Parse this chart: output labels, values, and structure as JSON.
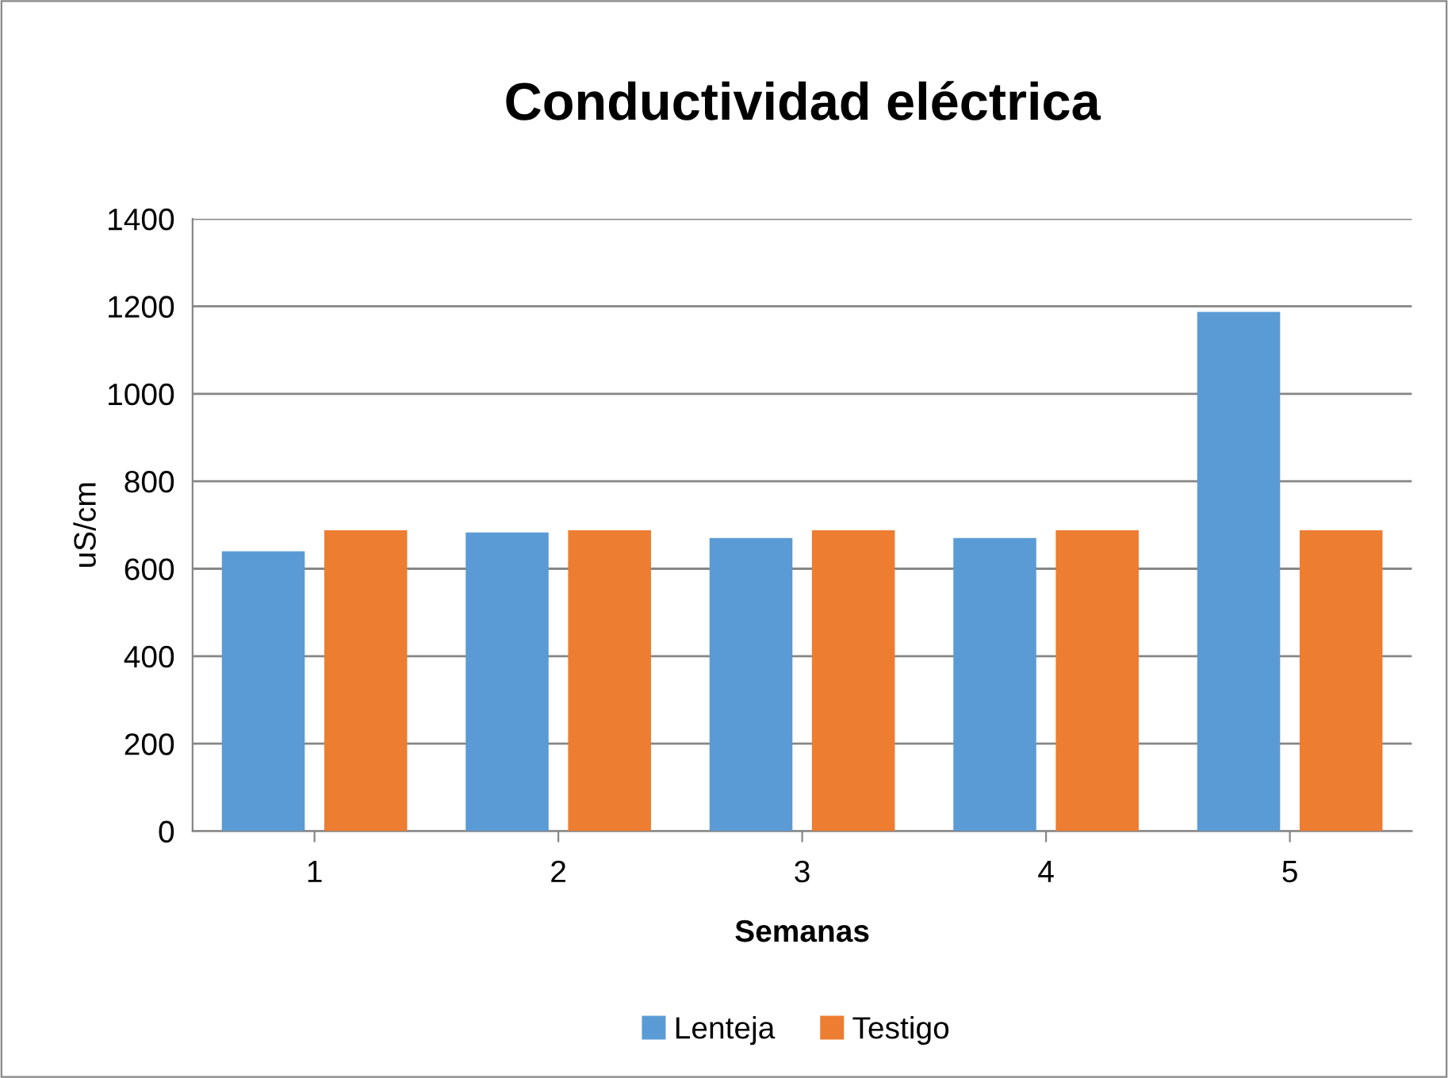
{
  "chart_data": {
    "type": "bar",
    "title": "Conductividad eléctrica",
    "xlabel": "Semanas",
    "ylabel": "uS/cm",
    "categories": [
      "1",
      "2",
      "3",
      "4",
      "5"
    ],
    "series": [
      {
        "name": "Lenteja",
        "color": "#5b9bd5",
        "values": [
          640,
          683,
          670,
          670,
          1187
        ]
      },
      {
        "name": "Testigo",
        "color": "#ed7d31",
        "values": [
          688,
          688,
          688,
          688,
          688
        ]
      }
    ],
    "ylim": [
      0,
      1400
    ],
    "yticks": [
      0,
      200,
      400,
      600,
      800,
      1000,
      1200,
      1400
    ],
    "grid": "y",
    "legend": "bottom"
  }
}
